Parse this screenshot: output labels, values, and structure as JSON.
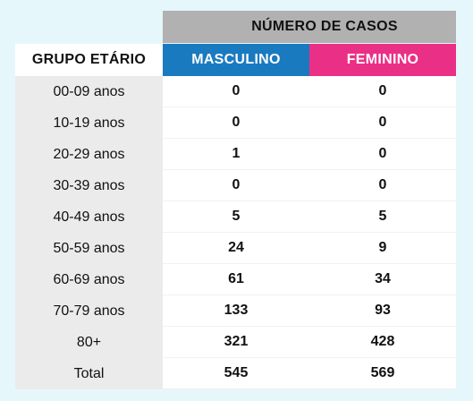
{
  "table": {
    "super_header": "NÚMERO DE CASOS",
    "columns": {
      "group": "GRUPO ETÁRIO",
      "male": "MASCULINO",
      "female": "FEMININO"
    },
    "rows": [
      {
        "group": "00-09 anos",
        "male": "0",
        "female": "0"
      },
      {
        "group": "10-19 anos",
        "male": "0",
        "female": "0"
      },
      {
        "group": "20-29 anos",
        "male": "1",
        "female": "0"
      },
      {
        "group": "30-39 anos",
        "male": "0",
        "female": "0"
      },
      {
        "group": "40-49 anos",
        "male": "5",
        "female": "5"
      },
      {
        "group": "50-59 anos",
        "male": "24",
        "female": "9"
      },
      {
        "group": "60-69 anos",
        "male": "61",
        "female": "34"
      },
      {
        "group": "70-79 anos",
        "male": "133",
        "female": "93"
      },
      {
        "group": "80+",
        "male": "321",
        "female": "428"
      },
      {
        "group": "Total",
        "male": "545",
        "female": "569"
      }
    ]
  },
  "colors": {
    "male_header": "#1a7ac0",
    "female_header": "#ea2f86",
    "super_header": "#b1b1b1",
    "group_column": "#ebebeb",
    "background": "#e6f7fb"
  }
}
